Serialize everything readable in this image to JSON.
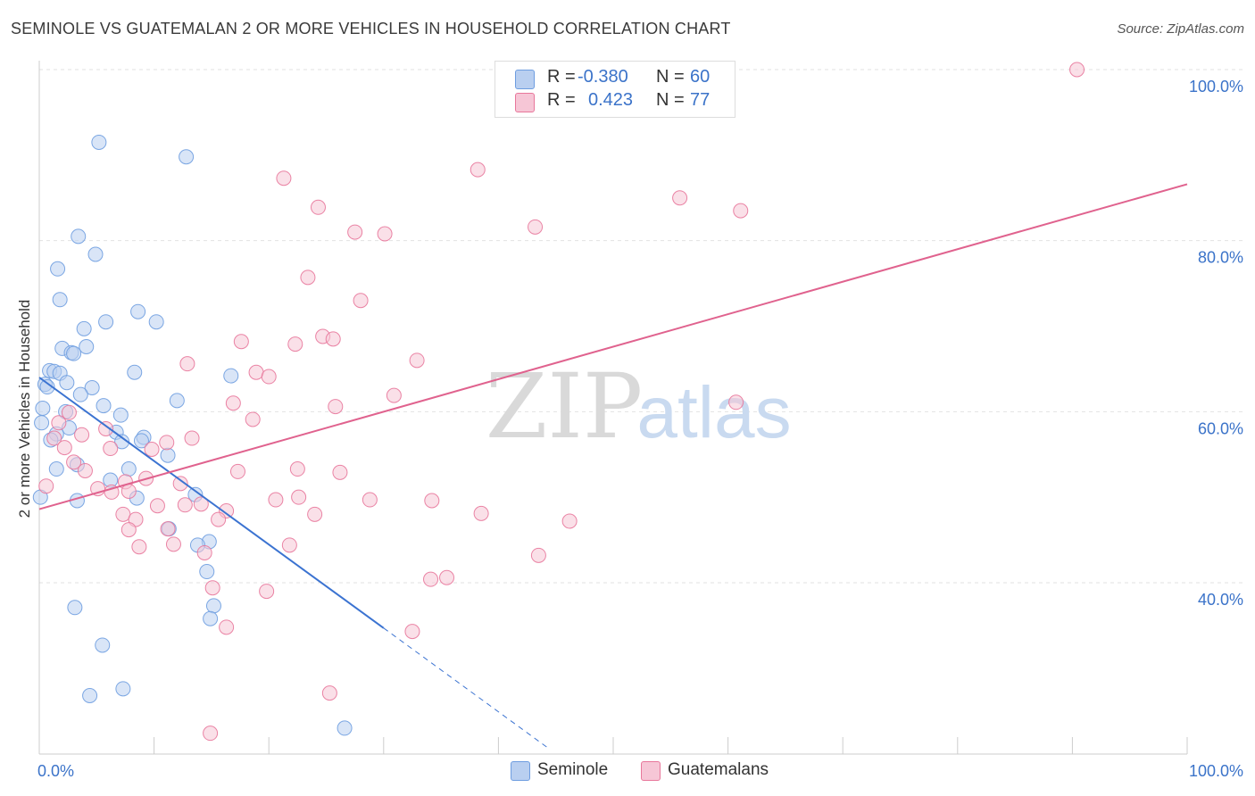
{
  "title": "SEMINOLE VS GUATEMALAN 2 OR MORE VEHICLES IN HOUSEHOLD CORRELATION CHART",
  "source": "Source: ZipAtlas.com",
  "watermark": {
    "zip": "ZIP",
    "atlas": "atlas"
  },
  "legend": {
    "rows": [
      {
        "r_label": "R =",
        "r_value": "-0.380",
        "n_label": "N =",
        "n_value": "60"
      },
      {
        "r_label": "R =",
        "r_value": "0.423",
        "n_label": "N =",
        "n_value": "77"
      }
    ]
  },
  "bottom_legend": [
    "Seminole",
    "Guatemalans"
  ],
  "chart_data": {
    "type": "scatter",
    "title": "SEMINOLE VS GUATEMALAN 2 OR MORE VEHICLES IN HOUSEHOLD CORRELATION CHART",
    "xlabel": "",
    "ylabel": "2 or more Vehicles in Household",
    "xlim": [
      0,
      100
    ],
    "ylim": [
      20,
      102
    ],
    "x_tick_labels": [
      {
        "value": 0,
        "label": "0.0%"
      },
      {
        "value": 100,
        "label": "100.0%"
      }
    ],
    "y_tick_labels": [
      {
        "value": 40,
        "label": "40.0%"
      },
      {
        "value": 60,
        "label": "60.0%"
      },
      {
        "value": 80,
        "label": "80.0%"
      },
      {
        "value": 100,
        "label": "100.0%"
      }
    ],
    "series": [
      {
        "name": "Seminole",
        "color": "#6e9de0",
        "fill": "#b9cff0",
        "r": -0.38,
        "n": 60,
        "trend": {
          "x0": 0,
          "y0": 64.0,
          "x1": 30,
          "y1": 34.7,
          "dash_to_x": 44.5,
          "dash_to_y": 20.5
        },
        "points": [
          [
            5.2,
            91.5
          ],
          [
            12.8,
            89.8
          ],
          [
            3.4,
            80.5
          ],
          [
            4.9,
            78.4
          ],
          [
            1.6,
            76.7
          ],
          [
            1.8,
            73.1
          ],
          [
            8.6,
            71.7
          ],
          [
            5.8,
            70.5
          ],
          [
            10.2,
            70.5
          ],
          [
            3.9,
            69.7
          ],
          [
            4.1,
            67.6
          ],
          [
            2.0,
            67.4
          ],
          [
            2.8,
            66.9
          ],
          [
            3.0,
            66.8
          ],
          [
            0.9,
            64.8
          ],
          [
            1.3,
            64.7
          ],
          [
            1.8,
            64.5
          ],
          [
            8.3,
            64.6
          ],
          [
            16.7,
            64.2
          ],
          [
            2.4,
            63.4
          ],
          [
            0.5,
            63.2
          ],
          [
            0.7,
            62.9
          ],
          [
            4.6,
            62.8
          ],
          [
            3.6,
            62.0
          ],
          [
            12.0,
            61.3
          ],
          [
            0.3,
            60.4
          ],
          [
            5.6,
            60.7
          ],
          [
            2.3,
            60.0
          ],
          [
            7.1,
            59.6
          ],
          [
            0.2,
            58.7
          ],
          [
            2.6,
            58.1
          ],
          [
            6.7,
            57.6
          ],
          [
            1.5,
            57.4
          ],
          [
            9.1,
            57.0
          ],
          [
            1.0,
            56.7
          ],
          [
            7.2,
            56.5
          ],
          [
            8.9,
            56.6
          ],
          [
            11.2,
            54.9
          ],
          [
            3.3,
            53.8
          ],
          [
            1.5,
            53.3
          ],
          [
            7.8,
            53.3
          ],
          [
            6.2,
            52.0
          ],
          [
            13.6,
            50.3
          ],
          [
            0.1,
            50.0
          ],
          [
            3.3,
            49.6
          ],
          [
            8.5,
            49.9
          ],
          [
            11.3,
            46.3
          ],
          [
            14.8,
            44.8
          ],
          [
            13.8,
            44.4
          ],
          [
            14.6,
            41.3
          ],
          [
            3.1,
            37.1
          ],
          [
            15.2,
            37.3
          ],
          [
            14.9,
            35.8
          ],
          [
            5.5,
            32.7
          ],
          [
            7.3,
            27.6
          ],
          [
            4.4,
            26.8
          ],
          [
            26.6,
            23.0
          ]
        ]
      },
      {
        "name": "Guatemalans",
        "color": "#e8779b",
        "fill": "#f6c6d6",
        "r": 0.423,
        "n": 77,
        "trend": {
          "x0": 0,
          "y0": 48.6,
          "x1": 100,
          "y1": 86.6
        },
        "points": [
          [
            90.4,
            100.0
          ],
          [
            38.2,
            88.3
          ],
          [
            21.3,
            87.3
          ],
          [
            55.8,
            85.0
          ],
          [
            24.3,
            83.9
          ],
          [
            61.1,
            83.5
          ],
          [
            43.2,
            81.6
          ],
          [
            27.5,
            81.0
          ],
          [
            30.1,
            80.8
          ],
          [
            23.4,
            75.7
          ],
          [
            28.0,
            73.0
          ],
          [
            24.7,
            68.8
          ],
          [
            25.6,
            68.5
          ],
          [
            17.6,
            68.2
          ],
          [
            22.3,
            67.9
          ],
          [
            32.9,
            66.0
          ],
          [
            12.9,
            65.6
          ],
          [
            18.9,
            64.6
          ],
          [
            20.0,
            64.1
          ],
          [
            30.9,
            61.9
          ],
          [
            60.7,
            61.1
          ],
          [
            16.9,
            61.0
          ],
          [
            25.8,
            60.6
          ],
          [
            18.6,
            59.1
          ],
          [
            2.6,
            59.9
          ],
          [
            1.7,
            58.7
          ],
          [
            5.8,
            58.0
          ],
          [
            1.3,
            56.9
          ],
          [
            3.7,
            57.3
          ],
          [
            13.3,
            56.9
          ],
          [
            2.2,
            55.8
          ],
          [
            6.2,
            55.7
          ],
          [
            11.1,
            56.4
          ],
          [
            9.8,
            55.6
          ],
          [
            3.0,
            54.1
          ],
          [
            4.0,
            53.1
          ],
          [
            17.3,
            53.0
          ],
          [
            22.5,
            53.3
          ],
          [
            26.2,
            52.9
          ],
          [
            7.5,
            51.8
          ],
          [
            12.3,
            51.6
          ],
          [
            9.3,
            52.2
          ],
          [
            0.6,
            51.3
          ],
          [
            5.1,
            51.0
          ],
          [
            6.3,
            50.6
          ],
          [
            7.8,
            50.7
          ],
          [
            20.6,
            49.7
          ],
          [
            22.6,
            50.0
          ],
          [
            28.8,
            49.7
          ],
          [
            34.2,
            49.6
          ],
          [
            7.3,
            48.0
          ],
          [
            12.7,
            49.1
          ],
          [
            14.1,
            49.2
          ],
          [
            16.3,
            48.4
          ],
          [
            10.3,
            49.0
          ],
          [
            24.0,
            48.0
          ],
          [
            38.5,
            48.1
          ],
          [
            15.6,
            47.4
          ],
          [
            46.2,
            47.2
          ],
          [
            8.4,
            47.4
          ],
          [
            7.8,
            46.2
          ],
          [
            11.2,
            46.3
          ],
          [
            8.7,
            44.2
          ],
          [
            11.7,
            44.5
          ],
          [
            14.4,
            43.5
          ],
          [
            21.8,
            44.4
          ],
          [
            43.5,
            43.2
          ],
          [
            35.5,
            40.6
          ],
          [
            34.1,
            40.4
          ],
          [
            15.1,
            39.4
          ],
          [
            19.8,
            39.0
          ],
          [
            16.3,
            34.8
          ],
          [
            32.5,
            34.3
          ],
          [
            25.3,
            27.1
          ],
          [
            14.9,
            22.4
          ]
        ]
      }
    ]
  }
}
